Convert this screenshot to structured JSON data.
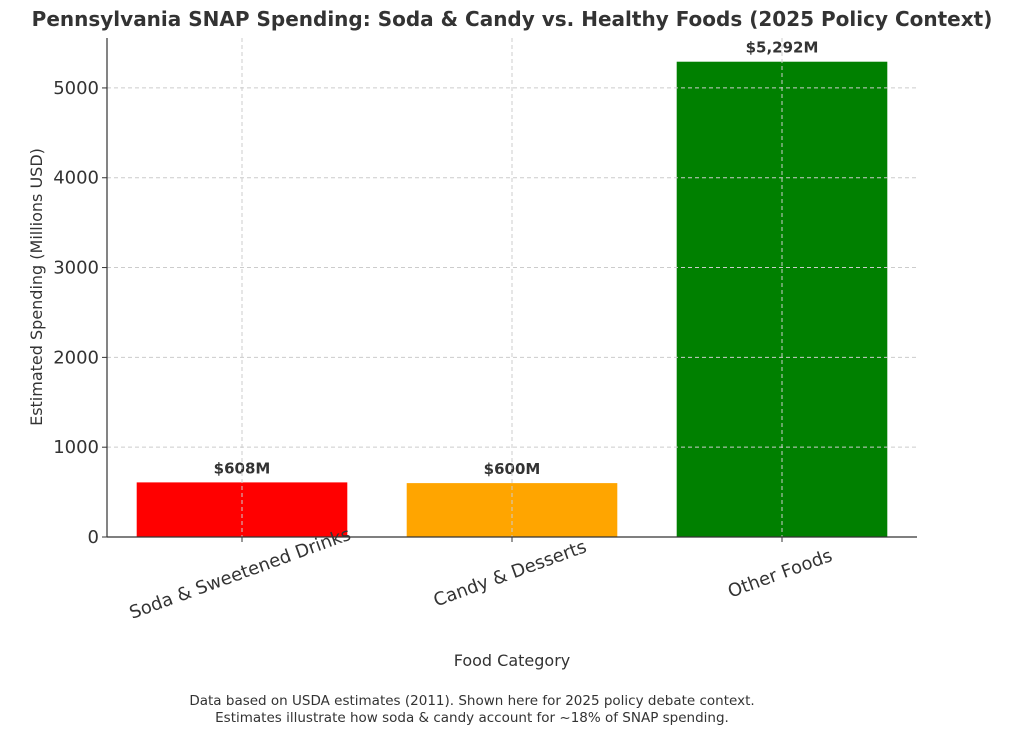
{
  "chart_data": {
    "type": "bar",
    "title": "Pennsylvania SNAP Spending: Soda & Candy vs. Healthy Foods (2025 Policy Context)",
    "xlabel": "Food Category",
    "ylabel": "Estimated Spending (Millions USD)",
    "categories": [
      "Soda & Sweetened Drinks",
      "Candy & Desserts",
      "Other Foods"
    ],
    "values": [
      608,
      600,
      5292
    ],
    "value_labels": [
      "$608M",
      "$600M",
      "$5,292M"
    ],
    "colors": [
      "#ff0000",
      "#ffa500",
      "#008000"
    ],
    "ylim": [
      0,
      5556
    ],
    "yticks": [
      0,
      1000,
      2000,
      3000,
      4000,
      5000
    ],
    "grid": true,
    "x_tick_rotation": -20
  },
  "footnote": {
    "line1": "Data based on USDA estimates (2011). Shown here for 2025 policy debate context.",
    "line2": "Estimates illustrate how soda & candy account for ~18% of SNAP spending."
  }
}
